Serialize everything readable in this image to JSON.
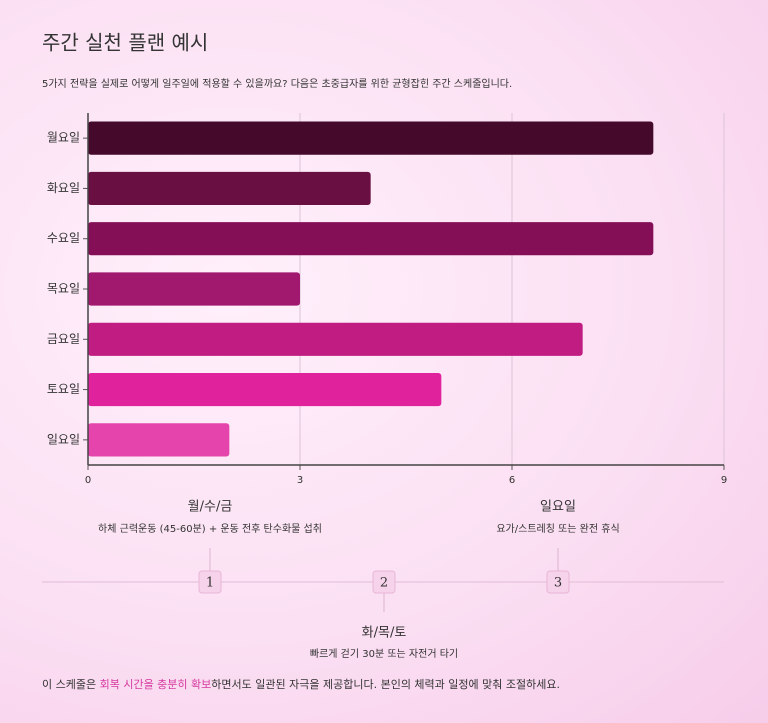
{
  "chart_data": {
    "type": "bar",
    "orientation": "horizontal",
    "title": "주간 실천 플랜 예시",
    "subtitle": "5가지 전략을 실제로 어떻게 일주일에 적용할 수 있을까요? 다음은 초중급자를 위한 균형잡힌 주간 스케줄입니다.",
    "categories": [
      "월요일",
      "화요일",
      "수요일",
      "목요일",
      "금요일",
      "토요일",
      "일요일"
    ],
    "values": [
      8,
      4,
      8,
      3,
      7,
      5,
      2
    ],
    "colors": [
      "#45092c",
      "#6a0f42",
      "#840f57",
      "#a1186f",
      "#c11c81",
      "#e0229d",
      "#e444ab"
    ],
    "xlim": [
      0,
      9
    ],
    "xticks": [
      0,
      3,
      6,
      9
    ],
    "grid": true
  },
  "timeline": {
    "items": [
      {
        "number": "1",
        "title": "월/수/금",
        "description": "하체 근력운동 (45-60분) + 운동 전후 탄수화물 섭취"
      },
      {
        "number": "2",
        "title": "화/목/토",
        "description": "빠르게 걷기 30분 또는 자전거 타기"
      },
      {
        "number": "3",
        "title": "일요일",
        "description": "요가/스트레칭 또는 완전 휴식"
      }
    ]
  },
  "footer": {
    "parts": [
      "이 스케줄은 ",
      "회복 시간을 충분히 확보",
      "하면서도 일관된 자극을 제공합니다. 본인의 체력과 일정에 맞춰 조절하세요."
    ]
  }
}
